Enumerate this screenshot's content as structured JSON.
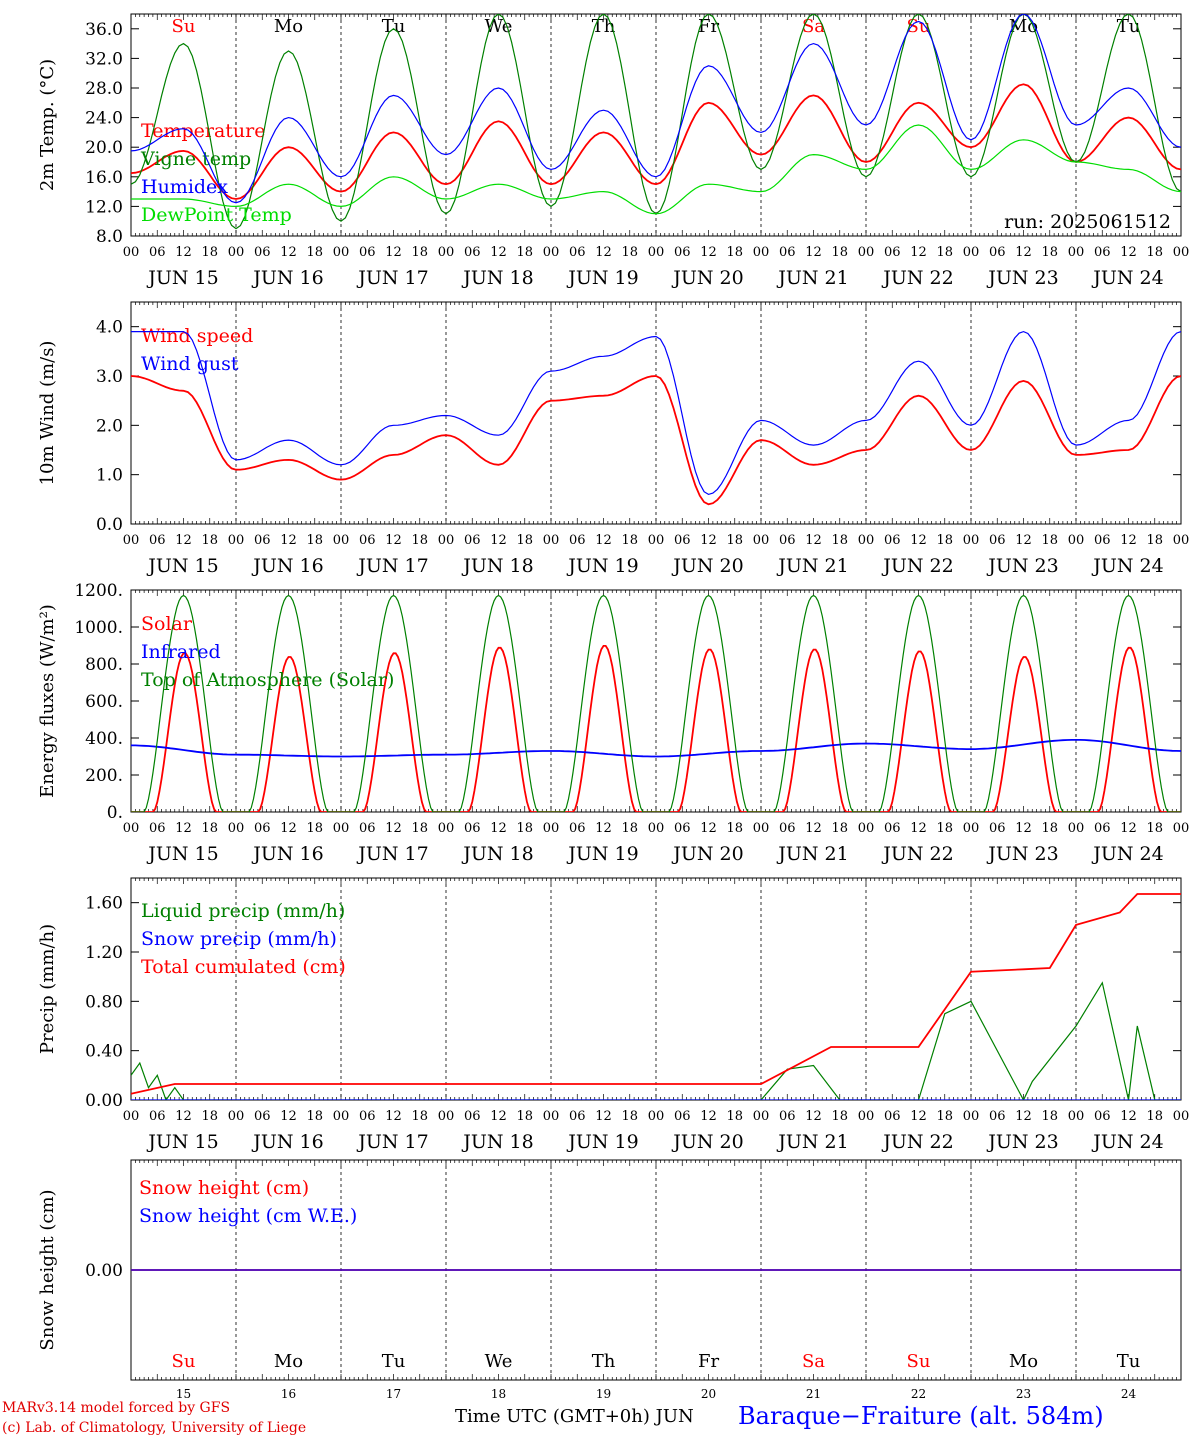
{
  "days": [
    {
      "label": "JUN 15",
      "dow": "Su",
      "dom": "15",
      "weekend": true
    },
    {
      "label": "JUN 16",
      "dow": "Mo",
      "dom": "16",
      "weekend": false
    },
    {
      "label": "JUN 17",
      "dow": "Tu",
      "dom": "17",
      "weekend": false
    },
    {
      "label": "JUN 18",
      "dow": "We",
      "dom": "18",
      "weekend": false
    },
    {
      "label": "JUN 19",
      "dow": "Th",
      "dom": "19",
      "weekend": false
    },
    {
      "label": "JUN 20",
      "dow": "Fr",
      "dom": "20",
      "weekend": false
    },
    {
      "label": "JUN 21",
      "dow": "Sa",
      "dom": "21",
      "weekend": true
    },
    {
      "label": "JUN 22",
      "dow": "Su",
      "dom": "22",
      "weekend": true
    },
    {
      "label": "JUN 23",
      "dow": "Mo",
      "dom": "23",
      "weekend": false
    },
    {
      "label": "JUN 24",
      "dow": "Tu",
      "dom": "24",
      "weekend": false
    }
  ],
  "hour_ticks": [
    "00",
    "06",
    "12",
    "18"
  ],
  "hour_tick_end": "00",
  "colors": {
    "red": "#ff0000",
    "green": "#008000",
    "blue": "#0000ff",
    "lightgreen": "#00dd00",
    "axis": "#000000"
  },
  "footer": {
    "model": "MARv3.14 model forced by GFS",
    "lab": "(c) Lab. of Climatology, University of Liege",
    "time_label": "Time UTC (GMT+0h)",
    "month": "JUN",
    "station": "Baraque−Fraiture (alt. 584m)"
  },
  "chart_data": [
    {
      "id": "temperature",
      "type": "line",
      "ylabel": "2m Temp. (°C)",
      "ylim": [
        8,
        38
      ],
      "yticks": [
        "8.0",
        "12.0",
        "16.0",
        "20.0",
        "24.0",
        "28.0",
        "32.0",
        "36.0"
      ],
      "run_label": "run: 2025061512",
      "x_unit": "hours since 2025-06-15 00 UTC",
      "x_points": [
        0,
        12,
        24,
        36,
        48,
        60,
        72,
        84,
        96,
        108,
        120,
        132,
        144,
        156,
        168,
        180,
        192,
        204,
        216,
        228,
        240
      ],
      "series": [
        {
          "name": "Temperature",
          "color": "red",
          "values": [
            16.5,
            19.5,
            13.0,
            20.0,
            14.0,
            22.0,
            15.0,
            23.5,
            15.0,
            22.0,
            15.0,
            26.0,
            19.0,
            27.0,
            18.0,
            26.0,
            20.0,
            28.5,
            18.0,
            24.0,
            17.0
          ]
        },
        {
          "name": "Vigne temp",
          "color": "green",
          "values": [
            15.0,
            34.0,
            9.0,
            33.0,
            10.0,
            36.0,
            11.0,
            38.0,
            12.0,
            38.0,
            11.0,
            38.0,
            17.0,
            38.0,
            16.0,
            38.0,
            16.0,
            38.0,
            18.0,
            38.0,
            14.0
          ]
        },
        {
          "name": "Humidex",
          "color": "blue",
          "values": [
            19.5,
            22.5,
            12.5,
            24.0,
            16.0,
            27.0,
            19.0,
            28.0,
            17.0,
            25.0,
            16.0,
            31.0,
            22.0,
            34.0,
            23.0,
            37.0,
            21.0,
            38.0,
            23.0,
            28.0,
            20.0
          ]
        },
        {
          "name": "DewPoint Temp",
          "color": "lightgreen",
          "values": [
            13.0,
            13.0,
            12.0,
            15.0,
            12.0,
            16.0,
            13.0,
            15.0,
            13.0,
            14.0,
            11.0,
            15.0,
            14.0,
            19.0,
            17.0,
            23.0,
            17.0,
            21.0,
            18.0,
            17.0,
            14.0
          ]
        }
      ]
    },
    {
      "id": "wind",
      "type": "line",
      "ylabel": "10m Wind (m/s)",
      "ylim": [
        0,
        4.5
      ],
      "yticks": [
        "0.0",
        "1.0",
        "2.0",
        "3.0",
        "4.0"
      ],
      "x_unit": "hours since 2025-06-15 00 UTC",
      "x_points": [
        0,
        12,
        24,
        36,
        48,
        60,
        72,
        84,
        96,
        108,
        120,
        132,
        144,
        156,
        168,
        180,
        192,
        204,
        216,
        228,
        240
      ],
      "series": [
        {
          "name": "Wind speed",
          "color": "red",
          "values": [
            3.0,
            2.7,
            1.1,
            1.3,
            0.9,
            1.4,
            1.8,
            1.2,
            2.5,
            2.6,
            3.0,
            0.4,
            1.7,
            1.2,
            1.5,
            2.6,
            1.5,
            2.9,
            1.4,
            1.5,
            3.0
          ]
        },
        {
          "name": "Wind gust",
          "color": "blue",
          "values": [
            3.9,
            3.9,
            1.3,
            1.7,
            1.2,
            2.0,
            2.2,
            1.8,
            3.1,
            3.4,
            3.8,
            0.6,
            2.1,
            1.6,
            2.1,
            3.3,
            2.0,
            3.9,
            1.6,
            2.1,
            3.9
          ]
        }
      ]
    },
    {
      "id": "energy",
      "type": "line",
      "ylabel": "Energy fluxes (W/m²)",
      "ylim": [
        0,
        1200
      ],
      "yticks": [
        "0.",
        "200.",
        "400.",
        "600.",
        "800.",
        "1000.",
        "1200."
      ],
      "x_unit": "hours since 2025-06-15 00 UTC",
      "solar_peaks_per_day": [
        860,
        840,
        860,
        890,
        900,
        880,
        880,
        870,
        840,
        890
      ],
      "series": [
        {
          "name": "Solar",
          "color": "red"
        },
        {
          "name": "Infrared",
          "color": "blue",
          "x_points": [
            0,
            24,
            48,
            72,
            96,
            120,
            144,
            168,
            192,
            216,
            240
          ],
          "values": [
            360,
            310,
            300,
            310,
            330,
            300,
            330,
            370,
            340,
            390,
            330
          ]
        },
        {
          "name": "Top of Atmosphere (Solar)",
          "color": "green",
          "peak": 1170
        }
      ]
    },
    {
      "id": "precip",
      "type": "line",
      "ylabel": "Precip (mm/h)",
      "ylim": [
        0,
        1.8
      ],
      "yticks": [
        "0.00",
        "0.40",
        "0.80",
        "1.20",
        "1.60"
      ],
      "x_unit": "hours since 2025-06-15 00 UTC",
      "series": [
        {
          "name": "Liquid precip (mm/h)",
          "color": "green",
          "x_points": [
            0,
            2,
            4,
            6,
            8,
            10,
            12,
            144,
            150,
            156,
            162,
            168,
            180,
            186,
            192,
            204,
            206,
            216,
            222,
            228,
            230,
            234,
            240
          ],
          "values": [
            0.2,
            0.3,
            0.1,
            0.2,
            0.0,
            0.1,
            0.0,
            0.0,
            0.25,
            0.28,
            0.0,
            0.0,
            0.0,
            0.7,
            0.8,
            0.0,
            0.15,
            0.6,
            0.95,
            0.0,
            0.6,
            0.0,
            0.0
          ]
        },
        {
          "name": "Snow precip (mm/h)",
          "color": "blue",
          "x_points": [
            0,
            240
          ],
          "values": [
            0,
            0
          ]
        },
        {
          "name": "Total cumulated (cm)",
          "color": "red",
          "x_points": [
            0,
            10,
            144,
            160,
            180,
            192,
            204,
            210,
            216,
            226,
            230,
            234,
            240
          ],
          "values": [
            0.05,
            0.13,
            0.13,
            0.43,
            0.43,
            1.04,
            1.06,
            1.07,
            1.42,
            1.52,
            1.67,
            1.67,
            1.67
          ]
        }
      ]
    },
    {
      "id": "snow",
      "type": "line",
      "ylabel": "Snow height (cm)",
      "ylim": [
        -1,
        1
      ],
      "yticks": [
        "0.00"
      ],
      "x_unit": "hours since 2025-06-15 00 UTC",
      "series": [
        {
          "name": "Snow height (cm)",
          "color": "red",
          "x_points": [
            0,
            240
          ],
          "values": [
            0,
            0
          ]
        },
        {
          "name": "Snow height (cm W.E.)",
          "color": "blue",
          "x_points": [
            0,
            240
          ],
          "values": [
            0,
            0
          ]
        }
      ]
    }
  ]
}
